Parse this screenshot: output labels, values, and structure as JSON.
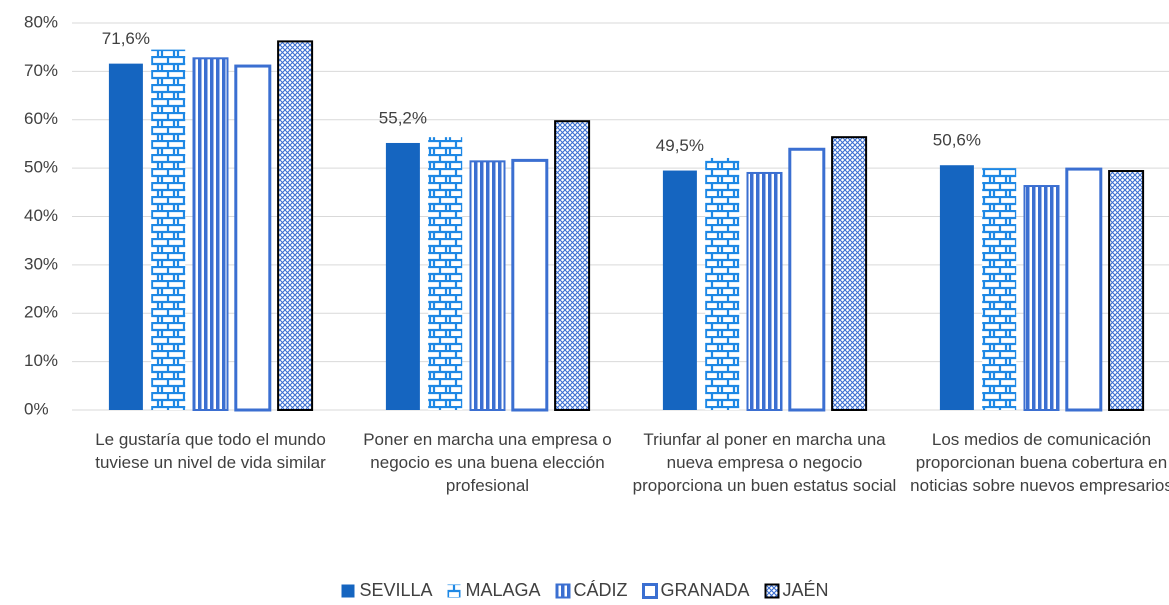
{
  "chart_data": {
    "type": "bar",
    "categories": [
      "Le gustaría que todo el mundo tuviese un nivel de vida similar",
      "Poner en marcha una empresa o negocio es una buena elección profesional",
      "Triunfar al poner en marcha una nueva empresa o negocio proporciona un buen estatus social",
      "Los medios de comunicación proporcionan buena cobertura en noticias sobre nuevos empresarios"
    ],
    "series": [
      {
        "name": "SEVILLA",
        "color": "#1565c0",
        "pattern": "solid",
        "values": [
          71.6,
          55.2,
          49.5,
          50.6
        ],
        "value_labels": [
          "71,6%",
          "55,2%",
          "49,5%",
          "50,6%"
        ]
      },
      {
        "name": "MALAGA",
        "color": "#1e88e5",
        "pattern": "brick",
        "values": [
          74.5,
          56.4,
          52.1,
          50.0
        ]
      },
      {
        "name": "CÁDIZ",
        "color": "#3b6fd1",
        "pattern": "vertical",
        "values": [
          72.7,
          51.4,
          49.0,
          46.3
        ]
      },
      {
        "name": "GRANADA",
        "color": "#3b6fd1",
        "pattern": "outline",
        "values": [
          71.1,
          51.6,
          53.9,
          49.8
        ]
      },
      {
        "name": "JAÉN",
        "color": "#3b6fd1",
        "pattern": "crosshatch",
        "values": [
          76.2,
          59.7,
          56.4,
          49.4
        ]
      }
    ],
    "ylim": [
      0,
      80
    ],
    "yticks": [
      {
        "value": 0,
        "label": "0%"
      },
      {
        "value": 10,
        "label": "10%"
      },
      {
        "value": 20,
        "label": "20%"
      },
      {
        "value": 30,
        "label": "30%"
      },
      {
        "value": 40,
        "label": "40%"
      },
      {
        "value": 50,
        "label": "50%"
      },
      {
        "value": 60,
        "label": "60%"
      },
      {
        "value": 70,
        "label": "70%"
      },
      {
        "value": 80,
        "label": "80%"
      }
    ],
    "grid": true
  }
}
